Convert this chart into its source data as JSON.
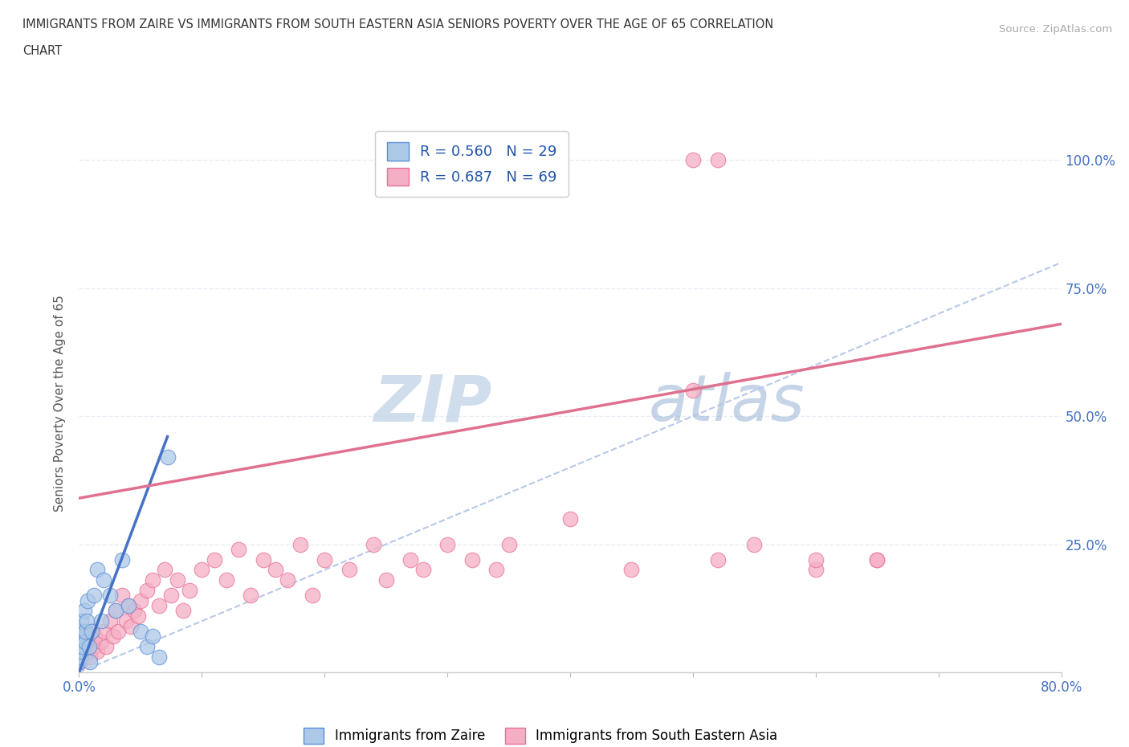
{
  "title_line1": "IMMIGRANTS FROM ZAIRE VS IMMIGRANTS FROM SOUTH EASTERN ASIA SENIORS POVERTY OVER THE AGE OF 65 CORRELATION",
  "title_line2": "CHART",
  "source_text": "Source: ZipAtlas.com",
  "ylabel": "Seniors Poverty Over the Age of 65",
  "x_min": 0.0,
  "x_max": 0.8,
  "y_min": 0.0,
  "y_max": 1.05,
  "x_ticks": [
    0.0,
    0.1,
    0.2,
    0.3,
    0.4,
    0.5,
    0.6,
    0.7,
    0.8
  ],
  "y_ticks": [
    0.0,
    0.25,
    0.5,
    0.75,
    1.0
  ],
  "y_tick_labels": [
    "",
    "25.0%",
    "50.0%",
    "75.0%",
    "100.0%"
  ],
  "watermark_zip": "ZIP",
  "watermark_atlas": "atlas",
  "zaire_R": 0.56,
  "zaire_N": 29,
  "sea_R": 0.687,
  "sea_N": 69,
  "zaire_color": "#adc9e8",
  "sea_color": "#f5afc4",
  "zaire_edge_color": "#5b8ed6",
  "sea_edge_color": "#e87098",
  "zaire_line_color": "#4472c4",
  "sea_line_color": "#e07090",
  "dashed_line_color": "#b8c8e8",
  "grid_color": "#e8ecf4",
  "zaire_line_x0": 0.0,
  "zaire_line_y0": 0.0,
  "zaire_line_x1": 0.072,
  "zaire_line_y1": 0.46,
  "sea_line_x0": 0.0,
  "sea_line_y0": 0.34,
  "sea_line_x1": 0.8,
  "sea_line_y1": 0.68,
  "zaire_x": [
    0.0,
    0.0,
    0.0,
    0.001,
    0.002,
    0.002,
    0.003,
    0.003,
    0.004,
    0.005,
    0.005,
    0.006,
    0.007,
    0.008,
    0.009,
    0.01,
    0.012,
    0.015,
    0.018,
    0.02,
    0.025,
    0.03,
    0.035,
    0.04,
    0.05,
    0.055,
    0.06,
    0.065,
    0.072
  ],
  "zaire_y": [
    0.02,
    0.05,
    0.08,
    0.03,
    0.04,
    0.1,
    0.05,
    0.07,
    0.12,
    0.06,
    0.08,
    0.1,
    0.14,
    0.05,
    0.02,
    0.08,
    0.15,
    0.2,
    0.1,
    0.18,
    0.15,
    0.12,
    0.22,
    0.13,
    0.08,
    0.05,
    0.07,
    0.03,
    0.42
  ],
  "sea_x": [
    0.0,
    0.0,
    0.001,
    0.001,
    0.002,
    0.003,
    0.004,
    0.005,
    0.006,
    0.007,
    0.008,
    0.009,
    0.01,
    0.012,
    0.013,
    0.015,
    0.018,
    0.02,
    0.022,
    0.025,
    0.028,
    0.03,
    0.032,
    0.035,
    0.038,
    0.04,
    0.042,
    0.045,
    0.048,
    0.05,
    0.055,
    0.06,
    0.065,
    0.07,
    0.075,
    0.08,
    0.085,
    0.09,
    0.1,
    0.11,
    0.12,
    0.13,
    0.14,
    0.15,
    0.16,
    0.17,
    0.18,
    0.19,
    0.2,
    0.22,
    0.24,
    0.25,
    0.27,
    0.28,
    0.3,
    0.32,
    0.34,
    0.35,
    0.4,
    0.45,
    0.5,
    0.52,
    0.55,
    0.6,
    0.65,
    0.5,
    0.52,
    0.6,
    0.65
  ],
  "sea_y": [
    0.03,
    0.05,
    0.02,
    0.08,
    0.04,
    0.06,
    0.03,
    0.07,
    0.05,
    0.04,
    0.06,
    0.03,
    0.08,
    0.05,
    0.07,
    0.04,
    0.06,
    0.08,
    0.05,
    0.1,
    0.07,
    0.12,
    0.08,
    0.15,
    0.1,
    0.13,
    0.09,
    0.12,
    0.11,
    0.14,
    0.16,
    0.18,
    0.13,
    0.2,
    0.15,
    0.18,
    0.12,
    0.16,
    0.2,
    0.22,
    0.18,
    0.24,
    0.15,
    0.22,
    0.2,
    0.18,
    0.25,
    0.15,
    0.22,
    0.2,
    0.25,
    0.18,
    0.22,
    0.2,
    0.25,
    0.22,
    0.2,
    0.25,
    0.3,
    0.2,
    0.55,
    0.22,
    0.25,
    0.2,
    0.22,
    1.0,
    1.0,
    0.22,
    0.22
  ]
}
